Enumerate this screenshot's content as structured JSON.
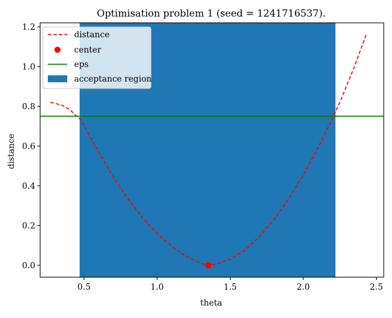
{
  "chart_data": {
    "type": "line",
    "title": "Optimisation problem 1 (seed = 1241716537).",
    "xlabel": "theta",
    "ylabel": "distance",
    "xlim": [
      0.2,
      2.55
    ],
    "ylim": [
      -0.06,
      1.22
    ],
    "xticks": [
      0.5,
      1.0,
      1.5,
      2.0,
      2.5
    ],
    "xtick_labels": [
      "0.5",
      "1.0",
      "1.5",
      "2.0",
      "2.5"
    ],
    "yticks": [
      0.0,
      0.2,
      0.4,
      0.6,
      0.8,
      1.0,
      1.2
    ],
    "ytick_labels": [
      "0.0",
      "0.2",
      "0.4",
      "0.6",
      "0.8",
      "1.0",
      "1.2"
    ],
    "grid": false,
    "legend_position": "top-left",
    "series": [
      {
        "name": "distance",
        "kind": "line",
        "style": "dashed",
        "color": "#ff0000",
        "x": [
          0.27,
          0.3,
          0.35,
          0.4,
          0.45,
          0.48,
          0.55,
          0.6,
          0.7,
          0.8,
          0.9,
          1.0,
          1.1,
          1.2,
          1.3,
          1.35,
          1.4,
          1.5,
          1.6,
          1.7,
          1.8,
          1.9,
          2.0,
          2.1,
          2.2,
          2.25,
          2.3,
          2.35,
          2.4,
          2.43
        ],
        "y": [
          0.82,
          0.815,
          0.805,
          0.785,
          0.75,
          0.73,
          0.635,
          0.57,
          0.445,
          0.335,
          0.24,
          0.16,
          0.095,
          0.045,
          0.01,
          0.0,
          0.005,
          0.03,
          0.075,
          0.145,
          0.23,
          0.335,
          0.455,
          0.59,
          0.74,
          0.82,
          0.91,
          1.0,
          1.1,
          1.16
        ]
      },
      {
        "name": "center",
        "kind": "point",
        "color": "#ff0000",
        "x": [
          1.35
        ],
        "y": [
          0.0
        ]
      },
      {
        "name": "eps",
        "kind": "hline",
        "color": "#008000",
        "y": 0.75
      },
      {
        "name": "acceptance region",
        "kind": "vspan",
        "color": "#1f77b4",
        "x_range": [
          0.47,
          2.22
        ]
      }
    ]
  }
}
